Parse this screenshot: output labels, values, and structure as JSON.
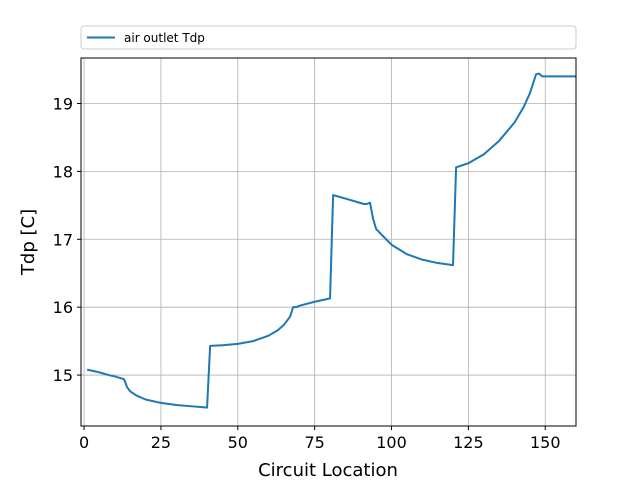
{
  "chart_data": {
    "type": "line",
    "title": "",
    "xlabel": "Circuit Location",
    "ylabel": "Tdp [C]",
    "xlim": [
      -1,
      160
    ],
    "ylim": [
      14.25,
      19.67
    ],
    "xticks": [
      0,
      25,
      50,
      75,
      100,
      125,
      150
    ],
    "yticks": [
      15,
      16,
      17,
      18,
      19
    ],
    "grid": true,
    "legend_position": "top (above plot)",
    "colors": {
      "series": "#1f77b4",
      "grid": "#b0b0b0",
      "axes": "#000000"
    },
    "series": [
      {
        "name": "air outlet Tdp",
        "x": [
          1,
          5,
          8,
          10,
          13,
          14,
          15,
          17,
          20,
          25,
          30,
          35,
          38,
          40,
          41,
          45,
          50,
          55,
          60,
          63,
          65,
          67,
          68,
          69,
          70,
          75,
          80,
          81,
          85,
          88,
          91,
          92,
          93,
          94,
          95,
          100,
          105,
          110,
          115,
          120,
          121,
          125,
          130,
          135,
          140,
          143,
          145,
          147,
          148,
          149,
          150,
          155,
          160
        ],
        "y": [
          15.08,
          15.04,
          15.0,
          14.98,
          14.94,
          14.82,
          14.76,
          14.7,
          14.64,
          14.59,
          14.56,
          14.54,
          14.53,
          14.52,
          15.43,
          15.44,
          15.46,
          15.5,
          15.58,
          15.66,
          15.74,
          15.86,
          16.0,
          16.0,
          16.02,
          16.08,
          16.13,
          17.65,
          17.6,
          17.56,
          17.52,
          17.52,
          17.54,
          17.3,
          17.15,
          16.92,
          16.78,
          16.7,
          16.65,
          16.62,
          18.06,
          18.12,
          18.25,
          18.45,
          18.72,
          18.95,
          19.15,
          19.43,
          19.44,
          19.4,
          19.4,
          19.4,
          19.4
        ]
      }
    ]
  }
}
